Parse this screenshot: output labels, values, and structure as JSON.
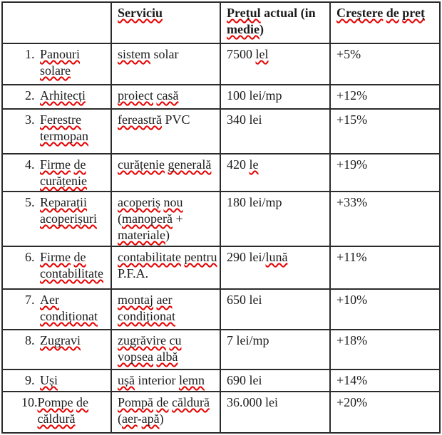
{
  "colors": {
    "background": "#ffffff",
    "text": "#1c1c1c",
    "border": "#2b2b2b",
    "squiggle": "#e80000"
  },
  "spellcheck": {
    "flagged_words": [
      "serviciu",
      "prețul",
      "medie",
      "creștere",
      "de",
      "preț",
      "panouri",
      "solare",
      "sistem",
      "lel",
      "arhitecți",
      "proiect",
      "casă",
      "ferestre",
      "termopan",
      "fereastră",
      "firme",
      "curățenie",
      "generală",
      "le",
      "reparații",
      "acoperișuri",
      "acoperiș",
      "nou",
      "manoperă",
      "materiale",
      "contabilitate",
      "pentru",
      "lună",
      "aer",
      "condiționat",
      "montaj",
      "zugravi",
      "zugrăvire",
      "cu",
      "vopsea",
      "albă",
      "uși",
      "ușă",
      "lemn",
      "pompe",
      "căldură",
      "pompă",
      "apă"
    ]
  },
  "table": {
    "columns": [
      "",
      "Serviciu",
      "Prețul actual (in medie)",
      "Creștere de preț"
    ],
    "rows": [
      {
        "num": "1.",
        "category": "Panouri solare",
        "service": "sistem solar",
        "price": "7500 lel",
        "increase": "+5%"
      },
      {
        "num": "2.",
        "category": "Arhitecți",
        "service": "proiect casă",
        "price": "100 lei/mp",
        "increase": "+12%"
      },
      {
        "num": "3.",
        "category": "Ferestre termopan",
        "service": "fereastră PVC",
        "price": "340 lei",
        "increase": "+15%"
      },
      {
        "num": "4.",
        "category": "Firme de curățenie",
        "service": "curățenie generală",
        "price": "420 le",
        "increase": "+19%"
      },
      {
        "num": "5.",
        "category": "Reparații acoperișuri",
        "service": "acoperiș nou (manoperă + materiale)",
        "price": "180 lei/mp",
        "increase": "+33%"
      },
      {
        "num": "6.",
        "category": "Firme de contabilitate",
        "service": "contabilitate pentru P.F.A.",
        "price": "290 lei/lună",
        "increase": "+11%"
      },
      {
        "num": "7.",
        "category": "Aer condiționat",
        "service": "montaj aer condiționat",
        "price": "650 lei",
        "increase": "+10%"
      },
      {
        "num": "8.",
        "category": "Zugravi",
        "service": "zugrăvire cu vopsea albă",
        "price": "7 lei/mp",
        "increase": "+18%"
      },
      {
        "num": "9.",
        "category": "Uși",
        "service": "ușă interior lemn",
        "price": "690 lei",
        "increase": "+14%"
      },
      {
        "num": "10.",
        "category": "Pompe de căldură",
        "service": "Pompă de căldură (aer-apă)",
        "price": "36.000 lei",
        "increase": "+20%"
      }
    ]
  }
}
